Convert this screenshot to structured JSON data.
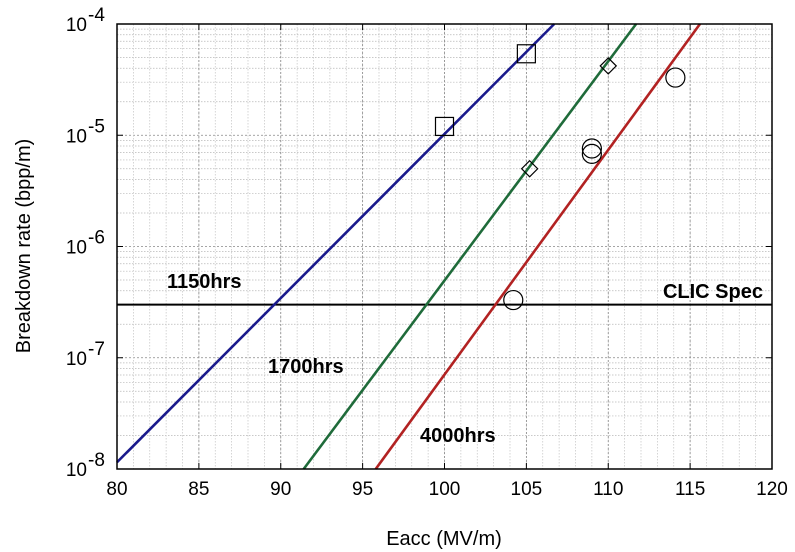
{
  "chart_data": {
    "type": "line",
    "title": "",
    "xlabel": "Eacc (MV/m)",
    "ylabel": "Breakdown rate (bpp/m)",
    "xlim": [
      80,
      120
    ],
    "ylim": [
      1e-08,
      0.0001
    ],
    "y_scale": "log",
    "grid": true,
    "x_ticks": [
      80,
      85,
      90,
      95,
      100,
      105,
      110,
      115,
      120
    ],
    "x_tick_labels": [
      "80",
      "85",
      "90",
      "95",
      "100",
      "105",
      "110",
      "115",
      "120"
    ],
    "y_ticks": [
      1e-08,
      1e-07,
      1e-06,
      1e-05,
      0.0001
    ],
    "y_tick_labels": [
      {
        "base": "10",
        "exp": "-8"
      },
      {
        "base": "10",
        "exp": "-7"
      },
      {
        "base": "10",
        "exp": "-6"
      },
      {
        "base": "10",
        "exp": "-5"
      },
      {
        "base": "10",
        "exp": "-4"
      }
    ],
    "series": [
      {
        "label": "1150hrs",
        "color": "#1a1a8c",
        "marker": "square",
        "line": {
          "x": [
            80,
            106.7
          ],
          "y": [
            1.15e-08,
            0.0001
          ]
        },
        "points": {
          "x": [
            100,
            105
          ],
          "y": [
            1.2e-05,
            5.4e-05
          ]
        }
      },
      {
        "label": "1700hrs",
        "color": "#1f6b3a",
        "marker": "diamond",
        "line": {
          "x": [
            91.4,
            111.7
          ],
          "y": [
            1e-08,
            0.0001
          ]
        },
        "points": {
          "x": [
            105.2,
            110
          ],
          "y": [
            5e-06,
            4.2e-05
          ]
        }
      },
      {
        "label": "4000hrs",
        "color": "#b22222",
        "marker": "circle",
        "line": {
          "x": [
            95.8,
            115.6
          ],
          "y": [
            1e-08,
            0.0001
          ]
        },
        "points": {
          "x": [
            104.2,
            109,
            109,
            114.1
          ],
          "y": [
            3.3e-07,
            6.8e-06,
            7.6e-06,
            3.3e-05
          ]
        }
      }
    ],
    "reference_lines": [
      {
        "label": "CLIC Spec",
        "y": 3e-07,
        "color": "#000000"
      }
    ]
  }
}
